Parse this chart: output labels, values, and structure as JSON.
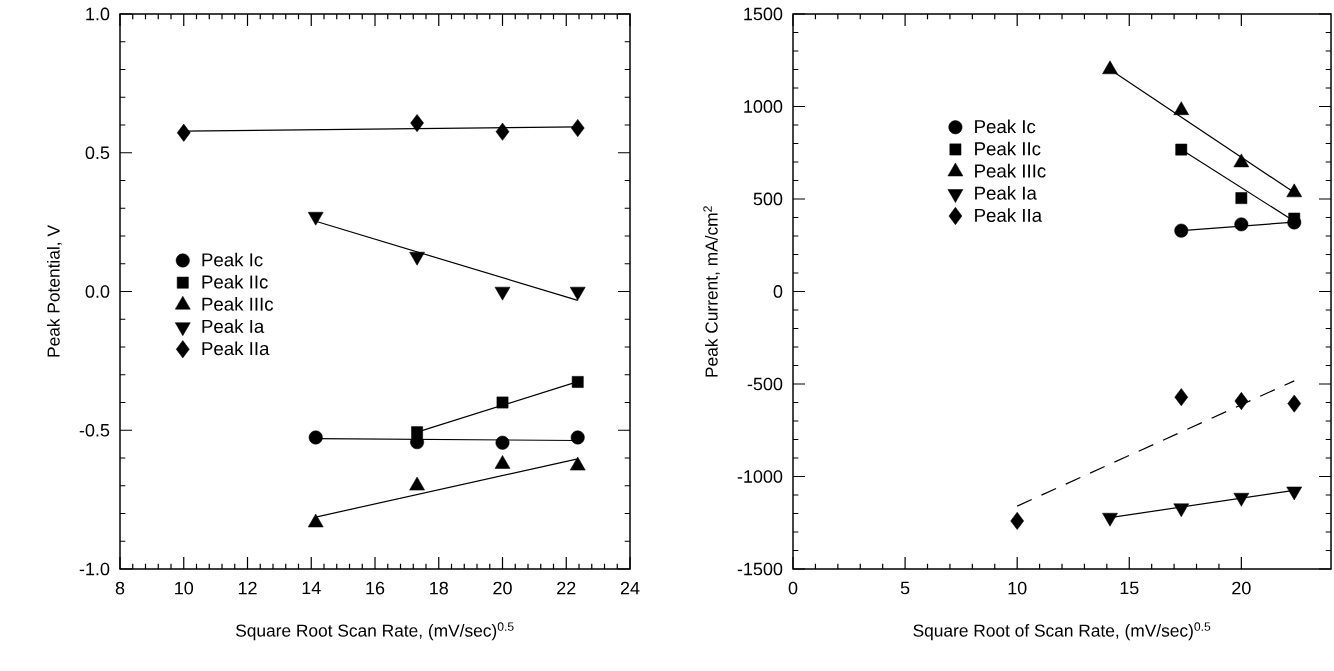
{
  "chart_data": [
    {
      "type": "scatter",
      "xlabel": "Square Root Scan Rate, (mV/sec)$^{0.5}$",
      "ylabel": "Peak Potential, V",
      "xlim": [
        8,
        24
      ],
      "xticks": [
        8,
        10,
        12,
        14,
        16,
        18,
        20,
        22,
        24
      ],
      "ylim": [
        -1,
        1
      ],
      "yticks": [
        {
          "value": -1,
          "label": "-1.0"
        },
        {
          "value": -0.5,
          "label": "-0.5"
        },
        {
          "value": 0,
          "label": "0.0"
        },
        {
          "value": 0.5,
          "label": "0.5"
        },
        {
          "value": 1,
          "label": "1.0"
        }
      ],
      "legend": "left",
      "grid": false,
      "series": [
        {
          "name": "Peak Ic",
          "marker": "circle",
          "color": "#000000",
          "x": [
            14.14,
            17.32,
            20,
            22.36
          ],
          "values": [
            -0.526,
            -0.543,
            -0.545,
            -0.526
          ]
        },
        {
          "name": "Peak IIc",
          "marker": "square",
          "color": "#000000",
          "x": [
            17.32,
            20,
            22.36
          ],
          "values": [
            -0.507,
            -0.4,
            -0.326
          ]
        },
        {
          "name": "Peak IIIc",
          "marker": "triangle",
          "color": "#000000",
          "x": [
            14.14,
            17.32,
            20,
            22.36
          ],
          "values": [
            -0.833,
            -0.7,
            -0.622,
            -0.628
          ]
        },
        {
          "name": "Peak Ia",
          "marker": "triangle-down",
          "color": "#000000",
          "x": [
            14.14,
            17.32,
            20,
            22.36
          ],
          "values": [
            0.27,
            0.126,
            0.0,
            0.0
          ]
        },
        {
          "name": "Peak IIa",
          "marker": "diamond",
          "color": "#000000",
          "x": [
            10,
            17.32,
            20,
            22.36
          ],
          "values": [
            0.572,
            0.607,
            0.576,
            0.589
          ]
        },
        {
          "type": "line",
          "marker": "none",
          "line_style": "solid",
          "color": "#000000",
          "x": [
            14.14,
            22.36
          ],
          "values": [
            -0.53,
            -0.537
          ]
        },
        {
          "type": "line",
          "marker": "none",
          "line_style": "solid",
          "color": "#000000",
          "x": [
            17.32,
            22.36
          ],
          "values": [
            -0.507,
            -0.325
          ]
        },
        {
          "type": "line",
          "marker": "none",
          "line_style": "solid",
          "color": "#000000",
          "x": [
            14.14,
            22.36
          ],
          "values": [
            -0.813,
            -0.603
          ]
        },
        {
          "type": "line",
          "marker": "none",
          "line_style": "solid",
          "color": "#000000",
          "x": [
            14.14,
            22.36
          ],
          "values": [
            0.253,
            -0.032
          ]
        },
        {
          "type": "line",
          "marker": "none",
          "line_style": "solid",
          "color": "#000000",
          "x": [
            10,
            22.36
          ],
          "values": [
            0.578,
            0.593
          ]
        }
      ]
    },
    {
      "type": "scatter",
      "xlabel": "Square Root of Scan Rate, (mV/sec)$^{0.5}$",
      "ylabel": "Peak Current, mA/cm$^{2}$",
      "xlim": [
        0,
        24
      ],
      "xticks": [
        0,
        5,
        10,
        15,
        20
      ],
      "ylim": [
        -1500,
        1500
      ],
      "yticks": [
        -1500,
        -1000,
        -500,
        0,
        500,
        1000,
        1500
      ],
      "legend": "top left",
      "grid": false,
      "series": [
        {
          "name": "Peak Ic",
          "marker": "circle",
          "color": "#000000",
          "x": [
            17.32,
            20,
            22.36
          ],
          "values": [
            329,
            363,
            373
          ]
        },
        {
          "name": "Peak IIc",
          "marker": "square",
          "color": "#000000",
          "x": [
            17.32,
            20,
            22.36
          ],
          "values": [
            767,
            505,
            394
          ]
        },
        {
          "name": "Peak IIIc",
          "marker": "triangle",
          "color": "#000000",
          "x": [
            14.14,
            17.32,
            20,
            22.36
          ],
          "values": [
            1200,
            979,
            697,
            535
          ]
        },
        {
          "name": "Peak Ia",
          "marker": "triangle-down",
          "color": "#000000",
          "x": [
            14.14,
            17.32,
            20,
            22.36
          ],
          "values": [
            -1222,
            -1171,
            -1114,
            -1080
          ]
        },
        {
          "name": "Peak IIa",
          "marker": "diamond",
          "color": "#000000",
          "x": [
            10,
            17.32,
            20,
            22.36
          ],
          "values": [
            -1240,
            -571,
            -592,
            -606
          ]
        },
        {
          "type": "line",
          "marker": "none",
          "line_style": "solid",
          "color": "#000000",
          "x": [
            17.32,
            22.36
          ],
          "values": [
            329,
            375
          ]
        },
        {
          "type": "line",
          "marker": "none",
          "line_style": "solid",
          "color": "#000000",
          "x": [
            17.32,
            22.36
          ],
          "values": [
            767,
            380
          ]
        },
        {
          "type": "line",
          "marker": "none",
          "line_style": "solid",
          "color": "#000000",
          "x": [
            14.14,
            22.36
          ],
          "values": [
            1200,
            535
          ]
        },
        {
          "type": "line",
          "marker": "none",
          "line_style": "solid",
          "color": "#000000",
          "x": [
            14.14,
            22.36
          ],
          "values": [
            -1222,
            -1075
          ]
        },
        {
          "type": "line",
          "marker": "none",
          "line_style": "dashed",
          "color": "#000000",
          "x": [
            10,
            22.36
          ],
          "values": [
            -1160,
            -483
          ]
        }
      ]
    }
  ]
}
